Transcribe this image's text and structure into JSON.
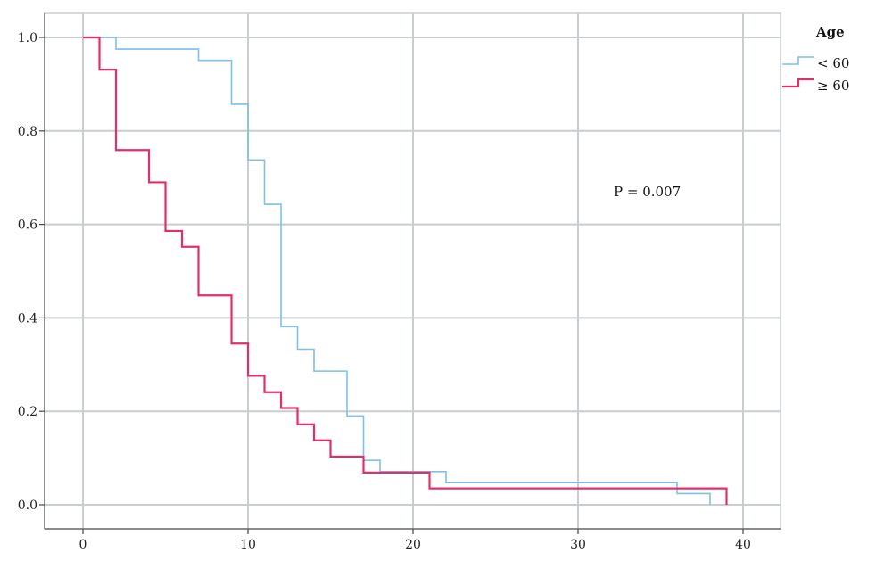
{
  "chart_data": {
    "type": "line",
    "subtype": "kaplan-meier-step",
    "title": "",
    "xlabel": "",
    "ylabel": "",
    "xlim": [
      0,
      42
    ],
    "ylim": [
      0,
      1.0
    ],
    "xticks": [
      "0",
      "10",
      "20",
      "30",
      "40"
    ],
    "yticks": [
      "0.0",
      "0.2",
      "0.4",
      "0.6",
      "0.8",
      "1.0"
    ],
    "grid": true,
    "legend": {
      "title": "Age",
      "position": "top-right"
    },
    "annotation": "P = 0.007",
    "series": [
      {
        "name": "< 60",
        "color": "#7fbfe8",
        "x": [
          0,
          2,
          7,
          9,
          10,
          11,
          12,
          13,
          14,
          16,
          17,
          18,
          22,
          36,
          38
        ],
        "y": [
          1.0,
          0.975,
          0.951,
          0.857,
          0.738,
          0.643,
          0.381,
          0.333,
          0.286,
          0.19,
          0.095,
          0.071,
          0.048,
          0.024,
          0.0
        ]
      },
      {
        "name": "≥ 60",
        "color": "#e0306a",
        "x": [
          0,
          1,
          2,
          4,
          5,
          6,
          7,
          9,
          10,
          11,
          12,
          13,
          14,
          15,
          17,
          21,
          39
        ],
        "y": [
          1.0,
          0.931,
          0.759,
          0.69,
          0.586,
          0.552,
          0.448,
          0.345,
          0.276,
          0.241,
          0.207,
          0.172,
          0.138,
          0.103,
          0.069,
          0.035,
          0.0
        ]
      }
    ]
  }
}
